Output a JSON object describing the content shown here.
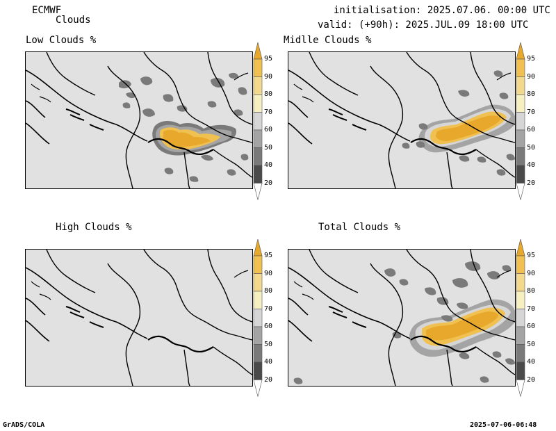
{
  "header": {
    "model": "ECMWF",
    "product": "Clouds",
    "init_line": "initialisation: 2025.07.06. 00:00 UTC",
    "valid_line": "valid: (+90h): 2025.JUL.09 18:00 UTC"
  },
  "panels": [
    {
      "title": "Low Clouds %"
    },
    {
      "title": "Midlle Clouds %"
    },
    {
      "title": "High Clouds %"
    },
    {
      "title": "Total Clouds %"
    }
  ],
  "colorbar": {
    "ticks": [
      "95",
      "90",
      "80",
      "70",
      "60",
      "50",
      "40",
      "20"
    ],
    "colors": [
      "#e8a82c",
      "#f0c050",
      "#f3d98e",
      "#f6f0c0",
      "#d6d6d6",
      "#a4a4a4",
      "#7a7a7a",
      "#4a4a4a",
      "#ffffff"
    ]
  },
  "footer": {
    "left": "GrADS/COLA",
    "right": "2025-07-06-06:48"
  }
}
